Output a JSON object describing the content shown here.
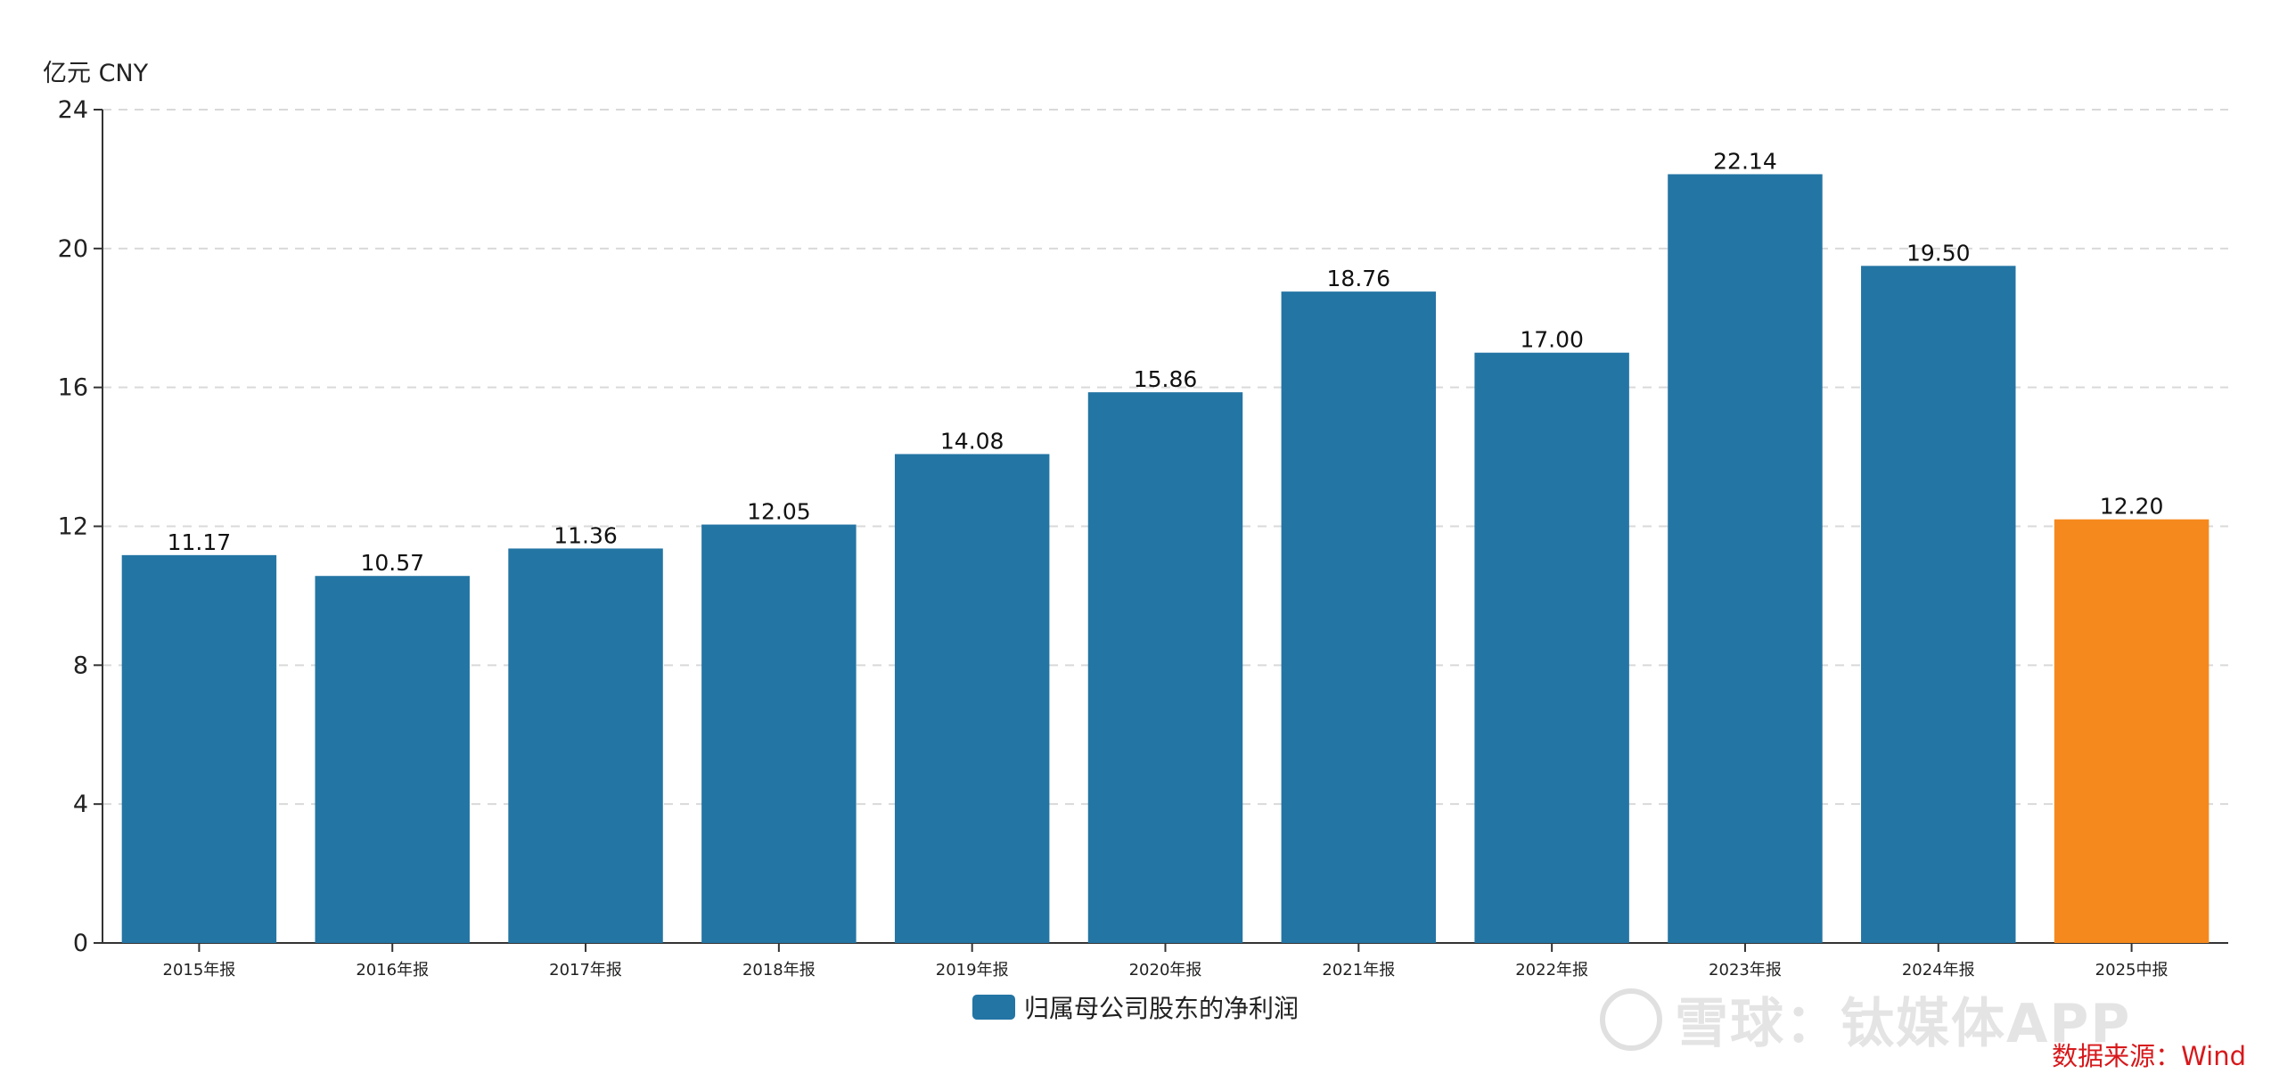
{
  "chart_data": {
    "type": "bar",
    "unit_label": "亿元  CNY",
    "categories": [
      "2015年报",
      "2016年报",
      "2017年报",
      "2018年报",
      "2019年报",
      "2020年报",
      "2021年报",
      "2022年报",
      "2023年报",
      "2024年报",
      "2025中报"
    ],
    "series": [
      {
        "name": "归属母公司股东的净利润",
        "values": [
          11.17,
          10.57,
          11.36,
          12.05,
          14.08,
          15.86,
          18.76,
          17.0,
          22.14,
          19.5,
          12.2
        ],
        "value_labels": [
          "11.17",
          "10.57",
          "11.36",
          "12.05",
          "14.08",
          "15.86",
          "18.76",
          "17.00",
          "22.14",
          "19.50",
          "12.20"
        ]
      }
    ],
    "ylim": [
      0,
      24
    ],
    "yticks": [
      0,
      4,
      8,
      12,
      16,
      20,
      24
    ],
    "grid": true,
    "legend_position": "bottom-center",
    "colors": {
      "bar": "#2375a4",
      "highlight": "#f5891d",
      "grid": "#d9d9d9",
      "axis": "#333333"
    },
    "highlight_category": "2025中报"
  },
  "source_text": "数据来源：Wind",
  "watermark_text": "雪球：钛媒体APP"
}
